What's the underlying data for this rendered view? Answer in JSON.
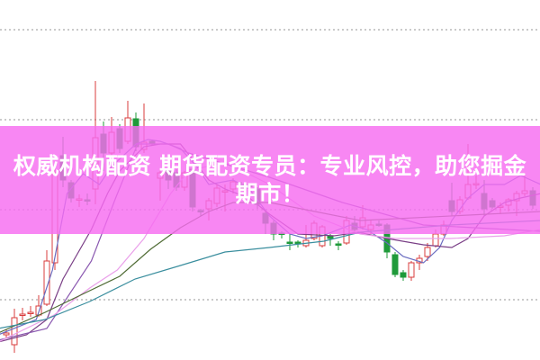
{
  "banner": {
    "line1": "权威机构配资 期货配资专员：专业风控，助您掘金",
    "line2": "期市！",
    "color": "#f66cf0"
  },
  "chart_data": {
    "type": "candlestick",
    "title": "",
    "xlabel": "",
    "ylabel": "",
    "ylim": [
      0,
      400
    ],
    "grid": true,
    "gridlines": [
      67,
      167,
      267,
      367
    ],
    "colors": {
      "up": "#d83c3c",
      "down": "#1f9a3a",
      "grid": "#aaaaaa"
    },
    "candles": [
      [
        28,
        30,
        34,
        24
      ],
      [
        17,
        47,
        57,
        8
      ],
      [
        50,
        51,
        58,
        44
      ],
      [
        52,
        53,
        60,
        48
      ],
      [
        50,
        60,
        72,
        48
      ],
      [
        62,
        110,
        122,
        60
      ],
      [
        108,
        208,
        213,
        100
      ],
      [
        227,
        200,
        248,
        192
      ],
      [
        197,
        180,
        200,
        175
      ],
      [
        178,
        179,
        184,
        170
      ],
      [
        178,
        177,
        185,
        172
      ],
      [
        190,
        247,
        310,
        173
      ],
      [
        251,
        230,
        265,
        210
      ],
      [
        230,
        253,
        270,
        225
      ],
      [
        257,
        235,
        262,
        230
      ],
      [
        243,
        269,
        288,
        240
      ],
      [
        268,
        237,
        275,
        232
      ],
      [
        234,
        242,
        285,
        230
      ],
      [
        243,
        241,
        245,
        238
      ],
      [
        202,
        208,
        212,
        177
      ],
      [
        212,
        200,
        215,
        190
      ],
      [
        208,
        192,
        212,
        188
      ],
      [
        192,
        208,
        210,
        188
      ],
      [
        212,
        170,
        215,
        165
      ],
      [
        166,
        165,
        168,
        160
      ],
      [
        168,
        177,
        180,
        155
      ],
      [
        174,
        191,
        195,
        170
      ],
      [
        187,
        188,
        195,
        165
      ],
      [
        190,
        198,
        202,
        185
      ],
      [
        195,
        190,
        198,
        188
      ],
      [
        194,
        193,
        196,
        190
      ],
      [
        190,
        173,
        192,
        168
      ],
      [
        163,
        152,
        165,
        140
      ],
      [
        152,
        140,
        155,
        133
      ],
      [
        141,
        140,
        143,
        135
      ],
      [
        131,
        130,
        140,
        122
      ],
      [
        131,
        130,
        133,
        125
      ],
      [
        127,
        133,
        150,
        125
      ],
      [
        135,
        152,
        155,
        133
      ],
      [
        127,
        148,
        150,
        125
      ],
      [
        138,
        135,
        140,
        127
      ],
      [
        129,
        128,
        132,
        122
      ],
      [
        130,
        155,
        160,
        128
      ],
      [
        152,
        145,
        160,
        142
      ],
      [
        148,
        158,
        172,
        145
      ],
      [
        145,
        150,
        155,
        140
      ],
      [
        151,
        150,
        155,
        148
      ],
      [
        150,
        120,
        152,
        113
      ],
      [
        117,
        95,
        120,
        92
      ],
      [
        97,
        92,
        100,
        88
      ],
      [
        92,
        108,
        110,
        88
      ],
      [
        108,
        113,
        117,
        100
      ],
      [
        115,
        125,
        130,
        110
      ],
      [
        127,
        140,
        145,
        125
      ],
      [
        140,
        150,
        155,
        138
      ],
      [
        177,
        165,
        197,
        160
      ],
      [
        165,
        178,
        182,
        162
      ],
      [
        180,
        195,
        240,
        178
      ],
      [
        195,
        196,
        205,
        190
      ],
      [
        185,
        168,
        200,
        160
      ],
      [
        177,
        170,
        180,
        168
      ],
      [
        170,
        171,
        175,
        162
      ],
      [
        172,
        178,
        180,
        165
      ],
      [
        177,
        185,
        188,
        160
      ],
      [
        185,
        188,
        208,
        182
      ],
      [
        188,
        172,
        192,
        168
      ]
    ],
    "lines": [
      {
        "color": "#6a6cc0",
        "points": [
          [
            -1,
            28
          ],
          [
            3.7,
            45
          ],
          [
            5.7,
            100
          ],
          [
            7.5,
            185
          ],
          [
            9.5,
            207
          ],
          [
            11.5,
            195
          ],
          [
            13,
            215
          ],
          [
            16,
            240
          ],
          [
            17.5,
            245
          ],
          [
            19,
            243
          ],
          [
            21.5,
            235
          ],
          [
            23.5,
            215
          ],
          [
            25,
            195
          ],
          [
            28,
            200
          ],
          [
            30,
            190
          ],
          [
            32.5,
            160
          ],
          [
            35,
            140
          ],
          [
            37,
            135
          ],
          [
            39,
            138
          ],
          [
            42.5,
            150
          ],
          [
            44.5,
            145
          ],
          [
            47,
            130
          ],
          [
            49,
            115
          ],
          [
            51.5,
            108
          ],
          [
            53.5,
            125
          ],
          [
            55,
            155
          ],
          [
            57,
            180
          ],
          [
            59,
            195
          ],
          [
            61.5,
            195
          ],
          [
            63.5,
            205
          ],
          [
            66,
            195
          ]
        ]
      },
      {
        "color": "#7a3f86",
        "points": [
          [
            -1,
            20
          ],
          [
            2.5,
            28
          ],
          [
            5,
            45
          ],
          [
            7,
            90
          ],
          [
            10.5,
            145
          ],
          [
            12.5,
            185
          ],
          [
            14,
            210
          ],
          [
            17,
            237
          ],
          [
            19,
            240
          ],
          [
            21.5,
            240
          ],
          [
            25,
            200
          ],
          [
            27,
            190
          ],
          [
            30,
            180
          ],
          [
            32.5,
            162
          ],
          [
            36,
            140
          ],
          [
            40.5,
            138
          ],
          [
            43.5,
            142
          ],
          [
            47,
            135
          ],
          [
            51.5,
            128
          ],
          [
            55,
            125
          ],
          [
            57,
            135
          ],
          [
            59,
            160
          ],
          [
            61.5,
            175
          ],
          [
            63.5,
            180
          ],
          [
            66,
            185
          ]
        ]
      },
      {
        "color": "#8a58b0",
        "points": [
          [
            -1,
            22
          ],
          [
            5,
            35
          ],
          [
            10.5,
            110
          ],
          [
            13.5,
            180
          ],
          [
            16.2,
            240
          ],
          [
            20,
            240
          ],
          [
            22.5,
            230
          ],
          [
            32.5,
            203
          ],
          [
            41.5,
            175
          ],
          [
            51.5,
            150
          ],
          [
            66,
            143
          ]
        ]
      },
      {
        "color": "#eaa0ea",
        "points": [
          [
            -1,
            20
          ],
          [
            5.9,
            50
          ],
          [
            10.3,
            80
          ],
          [
            13.7,
            100
          ],
          [
            17,
            135
          ],
          [
            20.3,
            185
          ],
          [
            22.5,
            210
          ],
          [
            27,
            220
          ],
          [
            32.5,
            195
          ],
          [
            38,
            160
          ],
          [
            43.7,
            140
          ],
          [
            48,
            135
          ],
          [
            54.8,
            135
          ],
          [
            61.5,
            138
          ],
          [
            66,
            145
          ]
        ]
      },
      {
        "color": "#4f6b34",
        "points": [
          [
            -1,
            30
          ],
          [
            4.8,
            53
          ],
          [
            10.3,
            77
          ],
          [
            14,
            93
          ],
          [
            17.8,
            123
          ],
          [
            21.5,
            147
          ],
          [
            25,
            165
          ],
          [
            28,
            175
          ],
          [
            32.5,
            175
          ],
          [
            43.7,
            155
          ],
          [
            66,
            165
          ]
        ]
      },
      {
        "color": "#3a8e9e",
        "points": [
          [
            -1,
            35
          ],
          [
            4.8,
            45
          ],
          [
            10.3,
            65
          ],
          [
            15.9,
            90
          ],
          [
            21.5,
            105
          ],
          [
            27,
            120
          ],
          [
            32.5,
            125
          ],
          [
            39.2,
            132
          ],
          [
            43.7,
            142
          ],
          [
            54.8,
            150
          ],
          [
            66,
            155
          ]
        ]
      }
    ]
  }
}
